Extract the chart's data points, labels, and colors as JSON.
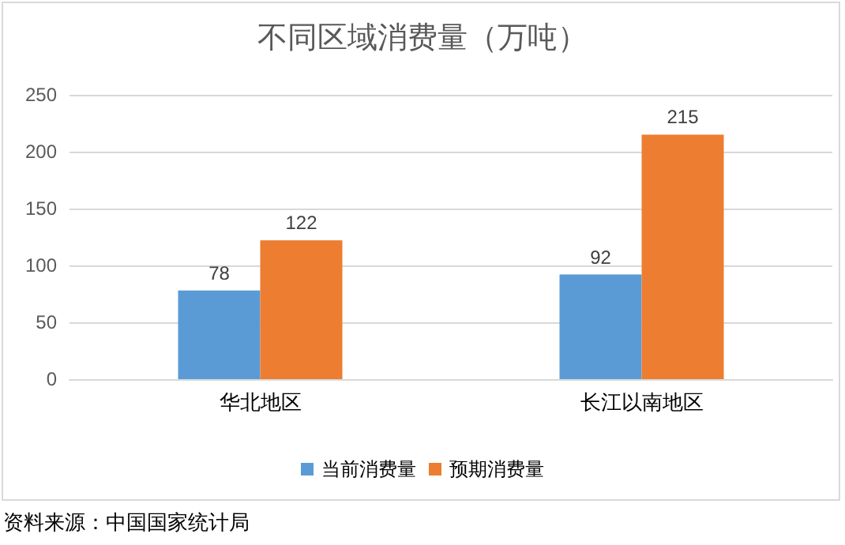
{
  "chart_data": {
    "type": "bar",
    "title": "不同区域消费量（万吨）",
    "categories": [
      "华北地区",
      "长江以南地区"
    ],
    "series": [
      {
        "name": "当前消费量",
        "color": "#5b9bd5",
        "values": [
          78,
          92
        ]
      },
      {
        "name": "预期消费量",
        "color": "#ed7d31",
        "values": [
          122,
          215
        ]
      }
    ],
    "ylim": [
      0,
      250
    ],
    "yticks": [
      0,
      50,
      100,
      150,
      200,
      250
    ],
    "grid": "y",
    "legend": "bottom",
    "data_labels": true,
    "annotations": [
      "资料来源：中国国家统计局"
    ]
  }
}
